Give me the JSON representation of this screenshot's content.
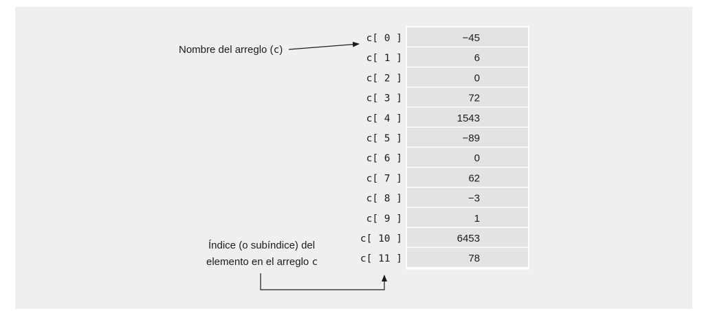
{
  "array_name_label": "Nombre del arreglo (",
  "array_name_var": "c",
  "array_name_close": ")",
  "index_label_line1": "Índice (o subíndice) del",
  "index_label_line2": "elemento en el arreglo",
  "index_label_var": "c",
  "elements": [
    {
      "index": "c[ 0 ]",
      "value": "-45"
    },
    {
      "index": "c[ 1 ]",
      "value": "6"
    },
    {
      "index": "c[ 2 ]",
      "value": "0"
    },
    {
      "index": "c[ 3 ]",
      "value": "72"
    },
    {
      "index": "c[ 4 ]",
      "value": "1543"
    },
    {
      "index": "c[ 5 ]",
      "value": "-89"
    },
    {
      "index": "c[ 6 ]",
      "value": "0"
    },
    {
      "index": "c[ 7 ]",
      "value": "62"
    },
    {
      "index": "c[ 8 ]",
      "value": "-3"
    },
    {
      "index": "c[ 9 ]",
      "value": "1"
    },
    {
      "index": "c[ 10 ]",
      "value": "6453"
    },
    {
      "index": "c[ 11 ]",
      "value": "78"
    }
  ],
  "colors": {
    "panel": "#efefef",
    "cell": "#e2e3e3",
    "cell_border": "#ffffff",
    "ink": "#1a1a1a"
  }
}
